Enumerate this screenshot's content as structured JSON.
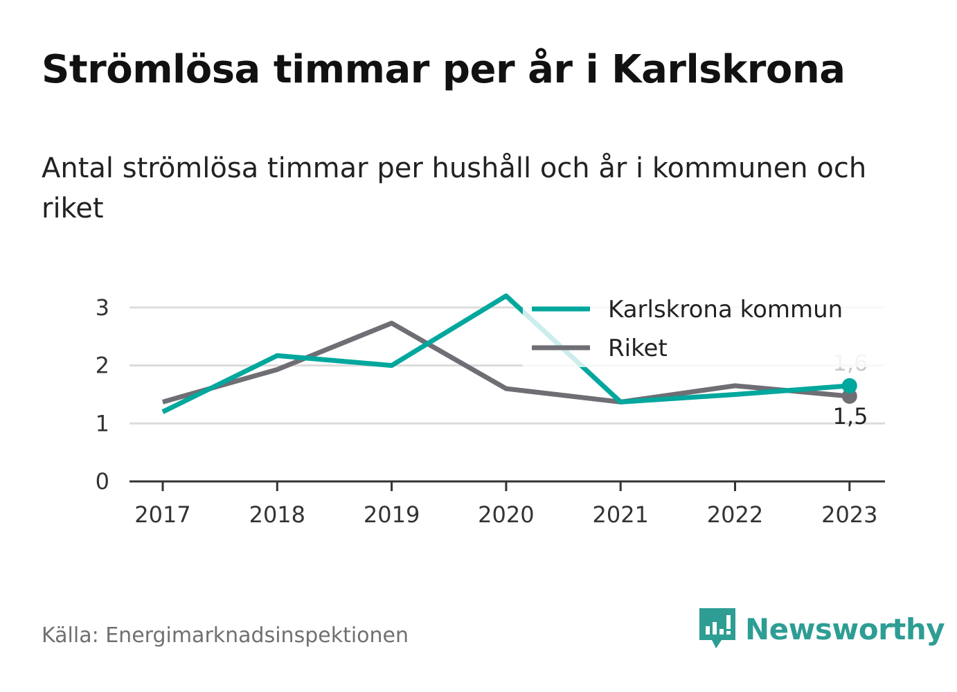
{
  "title": "Strömlösa timmar per år i Karlskrona",
  "subtitle": "Antal strömlösa timmar per hushåll och år i kommunen och riket",
  "source": "Källa: Energimarknadsinspektionen",
  "brand": {
    "name": "Newsworthy",
    "icon": "newsworthy-logo-icon",
    "color": "#2e9d94"
  },
  "chart_data": {
    "type": "line",
    "x": [
      "2017",
      "2018",
      "2019",
      "2020",
      "2021",
      "2022",
      "2023"
    ],
    "series": [
      {
        "name": "Karlskrona kommun",
        "color": "#00a79d",
        "values": [
          1.2,
          2.17,
          2.0,
          3.2,
          1.37,
          1.5,
          1.65
        ],
        "end_label": "1,6"
      },
      {
        "name": "Riket",
        "color": "#6e6e74",
        "values": [
          1.37,
          1.93,
          2.73,
          1.6,
          1.37,
          1.65,
          1.47
        ],
        "end_label": "1,5"
      }
    ],
    "yticks": [
      "0",
      "1",
      "2",
      "3"
    ],
    "ylim": [
      0,
      3.3
    ],
    "grid": true,
    "legend": "top-right"
  }
}
